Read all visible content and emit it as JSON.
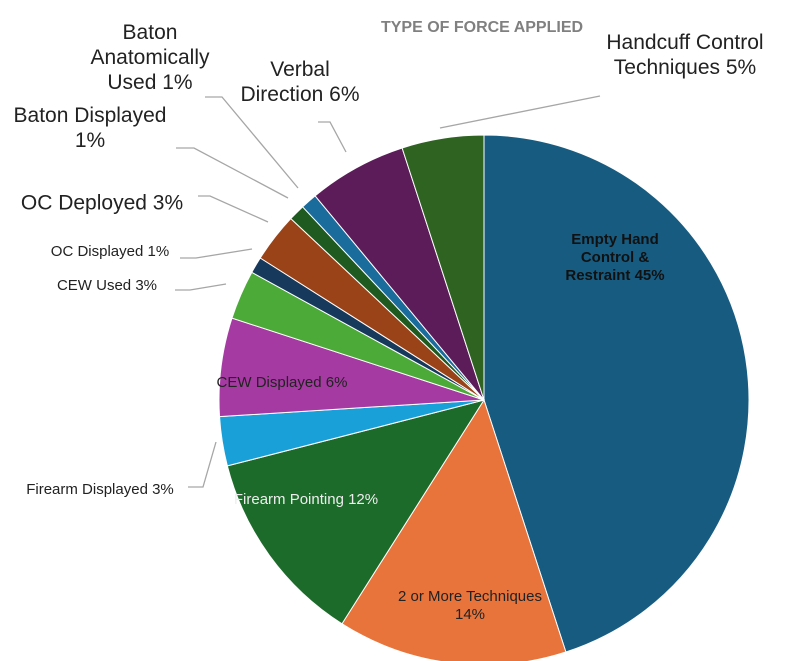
{
  "chart_data": {
    "type": "pie",
    "title": "TYPE OF FORCE APPLIED",
    "categories": [
      "Empty Hand Control & Restraint",
      "2 or More Techniques",
      "Firearm Pointing",
      "Firearm Displayed",
      "CEW Displayed",
      "CEW Used",
      "OC Displayed",
      "OC Deployed",
      "Baton Displayed",
      "Baton Anatomically Used",
      "Verbal Direction",
      "Handcuff Control Techniques"
    ],
    "values": [
      45,
      14,
      12,
      3,
      6,
      3,
      1,
      3,
      1,
      1,
      6,
      5
    ],
    "value_labels": [
      "45%",
      "14%",
      "12%",
      "3%",
      "6%",
      "3%",
      "1%",
      "3%",
      "1%",
      "1%",
      "6%",
      "5%"
    ],
    "colors": [
      "#175c80",
      "#e8743b",
      "#1d6b2b",
      "#1aa0d8",
      "#a63aa3",
      "#4caa38",
      "#16395c",
      "#9b4318",
      "#1f5a20",
      "#1a6c9c",
      "#5c1b59",
      "#2f6322"
    ]
  }
}
